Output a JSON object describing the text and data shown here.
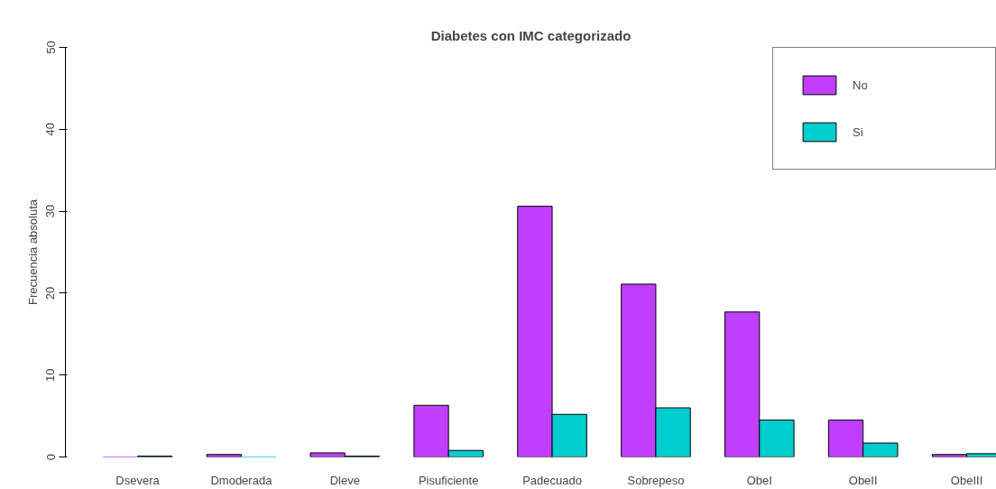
{
  "chart_data": {
    "type": "bar",
    "title": "Diabetes con IMC categorizado",
    "ylabel": "Frecuencia absoluta",
    "categories": [
      "Dsevera",
      "Dmoderada",
      "Dleve",
      "Pisuficiente",
      "Padecuado",
      "Sobrepeso",
      "ObeI",
      "ObeII",
      "ObeIII"
    ],
    "series": [
      {
        "name": "No",
        "color": "#bf3eff",
        "values": [
          0,
          0.3,
          0.5,
          6.3,
          30.6,
          21.1,
          17.7,
          4.5,
          0.3
        ]
      },
      {
        "name": "Si",
        "color": "#00cdcd",
        "values": [
          0.1,
          0,
          0.1,
          0.8,
          5.2,
          6.0,
          4.5,
          1.7,
          0.4
        ]
      }
    ],
    "ylim": [
      0,
      50
    ],
    "yticks": [
      0,
      10,
      20,
      30,
      40,
      50
    ],
    "legend": "top right"
  }
}
